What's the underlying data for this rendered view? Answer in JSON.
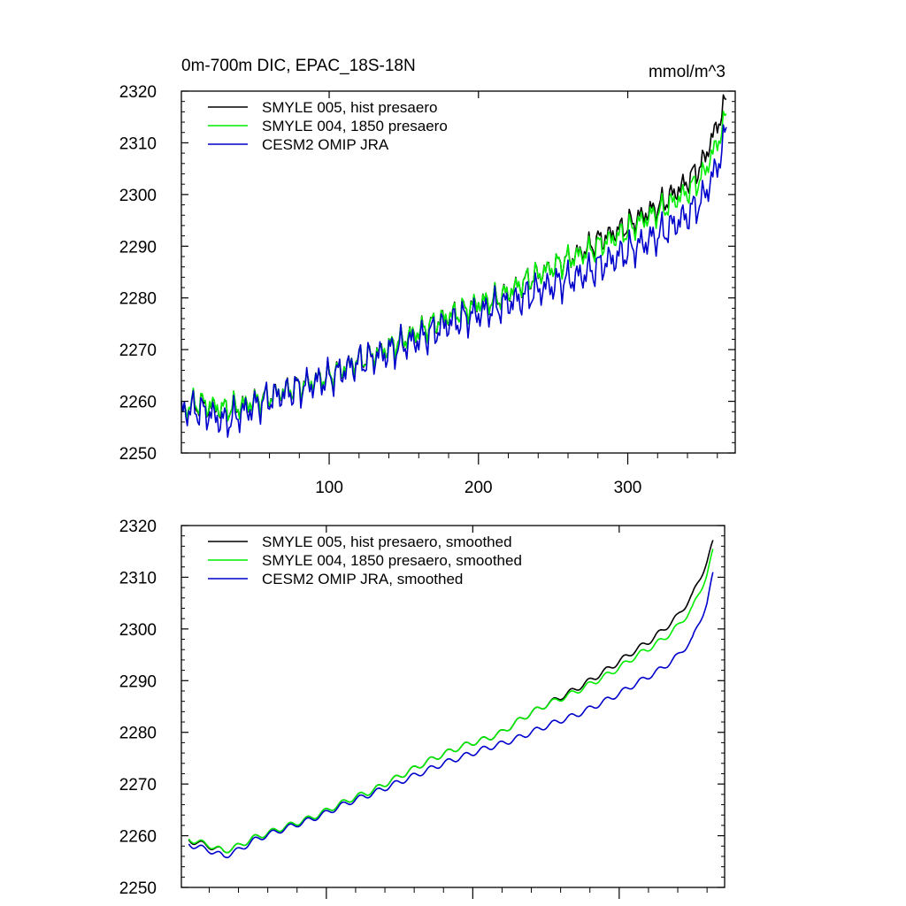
{
  "chart_data": [
    {
      "type": "line",
      "title": "0m-700m DIC, EPAC_18S-18N",
      "units": "mmol/m^3",
      "xlabel": "",
      "ylabel": "",
      "xlim": [
        1,
        372
      ],
      "ylim": [
        2250,
        2320
      ],
      "x_ticks": [
        100,
        200,
        300
      ],
      "x_tick_labels": [
        "100",
        "200",
        "300"
      ],
      "y_ticks": [
        2250,
        2260,
        2270,
        2280,
        2290,
        2300,
        2310,
        2320
      ],
      "y_tick_labels": [
        "2250",
        "2260",
        "2270",
        "2280",
        "2290",
        "2300",
        "2310",
        "2320"
      ],
      "legend_position": "top-left",
      "series": [
        {
          "name": "SMYLE 005, hist presaero",
          "color": "#000000",
          "x": [
            1,
            10,
            20,
            30,
            40,
            50,
            60,
            70,
            80,
            90,
            100,
            110,
            120,
            130,
            140,
            150,
            160,
            170,
            180,
            190,
            200,
            210,
            220,
            230,
            240,
            250,
            260,
            270,
            280,
            290,
            300,
            310,
            320,
            330,
            340,
            350,
            360,
            366
          ],
          "values": [
            2258.0,
            2259.5,
            2259.0,
            2258.5,
            2259.0,
            2260.0,
            2261.0,
            2262.0,
            2263.0,
            2264.0,
            2265.0,
            2266.5,
            2268.0,
            2269.0,
            2270.5,
            2272.0,
            2273.5,
            2275.0,
            2276.5,
            2277.5,
            2279.0,
            2279.5,
            2281.0,
            2283.0,
            2284.5,
            2286.0,
            2287.5,
            2289.0,
            2291.0,
            2292.5,
            2294.0,
            2296.0,
            2297.5,
            2300.0,
            2302.5,
            2306.0,
            2313.5,
            2318.0
          ]
        },
        {
          "name": "SMYLE 004, 1850 presaero",
          "color": "#00ee00",
          "x": [
            1,
            10,
            20,
            30,
            40,
            50,
            60,
            70,
            80,
            90,
            100,
            110,
            120,
            130,
            140,
            150,
            160,
            170,
            180,
            190,
            200,
            210,
            220,
            230,
            240,
            250,
            260,
            270,
            280,
            290,
            300,
            310,
            320,
            330,
            340,
            350,
            360,
            366
          ],
          "values": [
            2258.0,
            2259.8,
            2259.3,
            2258.5,
            2259.0,
            2260.0,
            2261.0,
            2262.0,
            2263.0,
            2264.0,
            2265.0,
            2266.5,
            2268.0,
            2269.0,
            2270.5,
            2272.0,
            2273.5,
            2275.0,
            2276.5,
            2277.5,
            2279.0,
            2279.5,
            2281.0,
            2283.0,
            2284.5,
            2286.0,
            2287.5,
            2288.5,
            2290.0,
            2291.5,
            2293.0,
            2295.0,
            2296.5,
            2298.5,
            2300.5,
            2303.5,
            2310.0,
            2315.0
          ]
        },
        {
          "name": "CESM2 OMIP JRA",
          "color": "#0000cc",
          "x": [
            1,
            10,
            20,
            30,
            40,
            50,
            60,
            70,
            80,
            90,
            100,
            110,
            120,
            130,
            140,
            150,
            160,
            170,
            180,
            190,
            200,
            210,
            220,
            230,
            240,
            250,
            260,
            270,
            280,
            290,
            300,
            310,
            320,
            330,
            340,
            350,
            360,
            366
          ],
          "values": [
            2258.0,
            2258.5,
            2257.5,
            2256.0,
            2257.5,
            2259.0,
            2260.5,
            2261.5,
            2262.5,
            2263.5,
            2264.5,
            2266.0,
            2267.5,
            2268.5,
            2269.5,
            2271.0,
            2272.0,
            2273.5,
            2275.0,
            2276.0,
            2277.0,
            2278.0,
            2279.0,
            2280.0,
            2281.5,
            2282.5,
            2283.5,
            2284.5,
            2286.0,
            2287.5,
            2289.0,
            2290.5,
            2292.0,
            2294.0,
            2296.0,
            2299.0,
            2305.5,
            2312.0
          ]
        }
      ]
    },
    {
      "type": "line",
      "title": "",
      "xlabel": "",
      "ylabel": "",
      "xlim": [
        1,
        372
      ],
      "ylim": [
        2250,
        2320
      ],
      "x_ticks": [
        100,
        200,
        300
      ],
      "x_tick_labels": [],
      "y_ticks": [
        2250,
        2260,
        2270,
        2280,
        2290,
        2300,
        2310,
        2320
      ],
      "y_tick_labels": [
        "2250",
        "2260",
        "2270",
        "2280",
        "2290",
        "2300",
        "2310",
        "2320"
      ],
      "legend_position": "top-left",
      "series": [
        {
          "name": "SMYLE 005, hist presaero, smoothed",
          "color": "#000000",
          "x": [
            6,
            10,
            20,
            30,
            40,
            50,
            60,
            70,
            80,
            90,
            100,
            110,
            120,
            130,
            140,
            150,
            160,
            170,
            180,
            190,
            200,
            210,
            220,
            230,
            240,
            250,
            260,
            270,
            280,
            290,
            300,
            310,
            320,
            330,
            340,
            350,
            360,
            364
          ],
          "values": [
            2259.2,
            2258.8,
            2258.0,
            2257.0,
            2258.0,
            2259.5,
            2260.5,
            2261.5,
            2262.5,
            2263.5,
            2264.8,
            2266.2,
            2267.5,
            2268.5,
            2270.0,
            2271.5,
            2273.0,
            2274.5,
            2275.8,
            2277.0,
            2278.0,
            2278.8,
            2280.0,
            2282.0,
            2283.8,
            2285.3,
            2286.8,
            2288.3,
            2290.0,
            2291.8,
            2293.7,
            2295.7,
            2297.5,
            2299.8,
            2302.5,
            2306.5,
            2313.0,
            2316.7
          ]
        },
        {
          "name": "SMYLE 004, 1850 presaero, smoothed",
          "color": "#00ee00",
          "x": [
            6,
            10,
            20,
            30,
            40,
            50,
            60,
            70,
            80,
            90,
            100,
            110,
            120,
            130,
            140,
            150,
            160,
            170,
            180,
            190,
            200,
            210,
            220,
            230,
            240,
            250,
            260,
            270,
            280,
            290,
            300,
            310,
            320,
            330,
            340,
            350,
            360,
            364
          ],
          "values": [
            2259.4,
            2259.0,
            2258.2,
            2257.0,
            2258.0,
            2259.5,
            2260.5,
            2261.5,
            2262.5,
            2263.5,
            2264.8,
            2266.2,
            2267.5,
            2268.5,
            2270.0,
            2271.5,
            2273.0,
            2274.5,
            2275.8,
            2277.0,
            2278.0,
            2278.8,
            2280.0,
            2282.0,
            2283.8,
            2285.3,
            2286.5,
            2287.8,
            2289.3,
            2290.8,
            2292.5,
            2294.5,
            2296.2,
            2298.0,
            2300.5,
            2304.0,
            2310.5,
            2315.0
          ]
        },
        {
          "name": "CESM2 OMIP JRA, smoothed",
          "color": "#0000cc",
          "x": [
            6,
            10,
            20,
            30,
            40,
            50,
            60,
            70,
            80,
            90,
            100,
            110,
            120,
            130,
            140,
            150,
            160,
            170,
            180,
            190,
            200,
            210,
            220,
            230,
            240,
            250,
            260,
            270,
            280,
            290,
            300,
            310,
            320,
            330,
            340,
            350,
            360,
            364
          ],
          "values": [
            2258.4,
            2258.0,
            2257.2,
            2256.0,
            2257.2,
            2259.0,
            2260.2,
            2261.2,
            2262.2,
            2263.2,
            2264.4,
            2265.8,
            2267.0,
            2268.0,
            2269.2,
            2270.4,
            2271.6,
            2272.8,
            2274.0,
            2275.0,
            2276.0,
            2277.0,
            2277.8,
            2278.8,
            2280.0,
            2281.2,
            2282.3,
            2283.3,
            2284.6,
            2286.0,
            2287.5,
            2289.2,
            2290.8,
            2292.5,
            2294.8,
            2298.0,
            2305.0,
            2310.5
          ]
        }
      ]
    }
  ]
}
